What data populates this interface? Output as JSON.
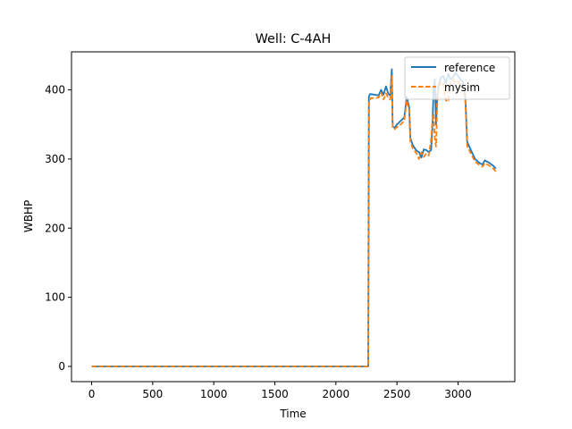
{
  "chart_data": {
    "type": "line",
    "title": "Well: C-4AH",
    "xlabel": "Time",
    "ylabel": "WBHP",
    "xlim": [
      -165,
      3465
    ],
    "ylim": [
      -22,
      455
    ],
    "xticks": [
      0,
      500,
      1000,
      1500,
      2000,
      2500,
      3000
    ],
    "yticks": [
      0,
      100,
      200,
      300,
      400
    ],
    "legend_position": "top-right",
    "grid": false,
    "series": [
      {
        "name": "reference",
        "color": "#1f77b4",
        "dash": "solid",
        "points": [
          [
            0,
            0
          ],
          [
            500,
            0
          ],
          [
            1000,
            0
          ],
          [
            1500,
            0
          ],
          [
            2000,
            0
          ],
          [
            2265,
            0
          ],
          [
            2270,
            390
          ],
          [
            2280,
            394
          ],
          [
            2320,
            393
          ],
          [
            2350,
            392
          ],
          [
            2370,
            400
          ],
          [
            2390,
            393
          ],
          [
            2410,
            405
          ],
          [
            2430,
            394
          ],
          [
            2445,
            392
          ],
          [
            2458,
            430
          ],
          [
            2465,
            347
          ],
          [
            2480,
            345
          ],
          [
            2500,
            350
          ],
          [
            2530,
            355
          ],
          [
            2560,
            360
          ],
          [
            2580,
            390
          ],
          [
            2600,
            375
          ],
          [
            2610,
            330
          ],
          [
            2630,
            320
          ],
          [
            2660,
            312
          ],
          [
            2680,
            310
          ],
          [
            2700,
            302
          ],
          [
            2720,
            314
          ],
          [
            2740,
            313
          ],
          [
            2760,
            310
          ],
          [
            2780,
            313
          ],
          [
            2790,
            345
          ],
          [
            2800,
            400
          ],
          [
            2810,
            415
          ],
          [
            2820,
            350
          ],
          [
            2830,
            390
          ],
          [
            2840,
            405
          ],
          [
            2860,
            418
          ],
          [
            2880,
            420
          ],
          [
            2900,
            410
          ],
          [
            2920,
            423
          ],
          [
            2940,
            415
          ],
          [
            2960,
            418
          ],
          [
            2980,
            425
          ],
          [
            3000,
            420
          ],
          [
            3020,
            415
          ],
          [
            3040,
            412
          ],
          [
            3060,
            390
          ],
          [
            3075,
            325
          ],
          [
            3100,
            315
          ],
          [
            3140,
            300
          ],
          [
            3170,
            295
          ],
          [
            3200,
            292
          ],
          [
            3220,
            298
          ],
          [
            3260,
            294
          ],
          [
            3290,
            290
          ],
          [
            3310,
            286
          ]
        ]
      },
      {
        "name": "mysim",
        "color": "#ff7f0e",
        "dash": "dashed",
        "points": [
          [
            0,
            0
          ],
          [
            500,
            0
          ],
          [
            1000,
            0
          ],
          [
            1500,
            0
          ],
          [
            2000,
            0
          ],
          [
            2265,
            0
          ],
          [
            2272,
            383
          ],
          [
            2285,
            388
          ],
          [
            2320,
            388
          ],
          [
            2350,
            389
          ],
          [
            2370,
            396
          ],
          [
            2390,
            386
          ],
          [
            2410,
            395
          ],
          [
            2430,
            388
          ],
          [
            2445,
            386
          ],
          [
            2458,
            420
          ],
          [
            2465,
            345
          ],
          [
            2480,
            343
          ],
          [
            2500,
            346
          ],
          [
            2530,
            350
          ],
          [
            2560,
            355
          ],
          [
            2580,
            385
          ],
          [
            2600,
            370
          ],
          [
            2610,
            325
          ],
          [
            2630,
            315
          ],
          [
            2660,
            308
          ],
          [
            2680,
            300
          ],
          [
            2700,
            310
          ],
          [
            2720,
            303
          ],
          [
            2740,
            308
          ],
          [
            2760,
            305
          ],
          [
            2780,
            328
          ],
          [
            2790,
            355
          ],
          [
            2800,
            365
          ],
          [
            2810,
            330
          ],
          [
            2820,
            318
          ],
          [
            2830,
            380
          ],
          [
            2840,
            400
          ],
          [
            2860,
            412
          ],
          [
            2880,
            408
          ],
          [
            2900,
            385
          ],
          [
            2920,
            383
          ],
          [
            2940,
            412
          ],
          [
            2960,
            415
          ],
          [
            2980,
            410
          ],
          [
            3000,
            412
          ],
          [
            3020,
            408
          ],
          [
            3040,
            405
          ],
          [
            3060,
            383
          ],
          [
            3075,
            318
          ],
          [
            3100,
            310
          ],
          [
            3140,
            296
          ],
          [
            3170,
            292
          ],
          [
            3200,
            289
          ],
          [
            3220,
            294
          ],
          [
            3260,
            290
          ],
          [
            3290,
            286
          ],
          [
            3310,
            282
          ]
        ]
      }
    ]
  }
}
